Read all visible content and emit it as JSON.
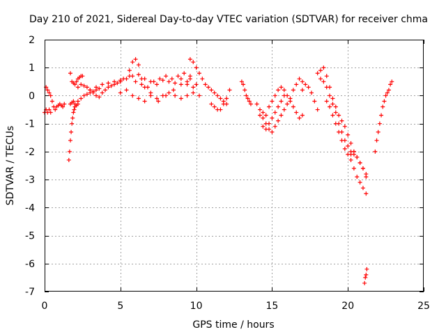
{
  "chart_data": {
    "type": "scatter",
    "title": "Day 210 of 2021, Sidereal Day-to-day VTEC variation (SDTVAR) for receiver chma",
    "xlabel": "GPS time / hours",
    "ylabel": "SDTVAR / TECUs",
    "xlim": [
      0,
      25
    ],
    "ylim": [
      -7,
      2
    ],
    "xticks": [
      0,
      5,
      10,
      15,
      20,
      25
    ],
    "yticks": [
      2,
      1,
      0,
      -1,
      -2,
      -3,
      -4,
      -5,
      -6,
      -7
    ],
    "grid": true,
    "marker": "+",
    "color": "#ff0000",
    "series": [
      {
        "name": "SDTVAR",
        "x": [
          0.0,
          0.1,
          0.2,
          0.3,
          0.4,
          0.1,
          0.2,
          0.3,
          0.4,
          0.5,
          0.6,
          0.7,
          0.8,
          0.9,
          1.0,
          1.1,
          1.2,
          1.3,
          1.6,
          1.65,
          1.7,
          1.75,
          1.8,
          1.85,
          1.9,
          1.95,
          2.0,
          2.1,
          2.2,
          1.7,
          1.8,
          1.9,
          2.0,
          2.1,
          2.2,
          2.3,
          2.4,
          2.5,
          1.7,
          1.8,
          1.9,
          2.0,
          2.2,
          2.4,
          2.6,
          2.8,
          3.0,
          3.2,
          3.4,
          3.6,
          2.2,
          2.4,
          2.6,
          2.8,
          3.0,
          3.2,
          3.4,
          3.6,
          3.8,
          4.0,
          4.2,
          4.4,
          4.6,
          4.8,
          5.0,
          3.0,
          3.4,
          3.8,
          4.2,
          4.6,
          5.0,
          5.4,
          5.8,
          6.2,
          6.6,
          7.0,
          7.4,
          7.8,
          8.2,
          8.6,
          9.0,
          9.4,
          9.8,
          5.0,
          5.4,
          5.8,
          6.2,
          6.6,
          7.0,
          7.4,
          7.8,
          8.2,
          8.6,
          9.0,
          9.4,
          9.8,
          10.2,
          5.2,
          5.6,
          6.0,
          6.4,
          6.8,
          7.2,
          7.6,
          8.0,
          8.4,
          8.8,
          9.2,
          9.6,
          10.0,
          5.6,
          5.8,
          6.0,
          6.2,
          6.4,
          6.6,
          7.0,
          7.5,
          8.0,
          8.5,
          9.0,
          9.4,
          9.6,
          9.6,
          9.8,
          10.0,
          10.2,
          10.4,
          10.6,
          10.8,
          11.0,
          11.2,
          11.4,
          11.6,
          11.8,
          12.0,
          11.0,
          11.2,
          11.4,
          11.6,
          11.8,
          12.0,
          12.2,
          13.0,
          13.1,
          13.2,
          13.3,
          13.4,
          13.5,
          13.6,
          14.0,
          14.2,
          14.4,
          14.6,
          14.8,
          15.0,
          15.2,
          15.4,
          15.6,
          15.8,
          16.0,
          16.2,
          16.4,
          16.6,
          16.8,
          17.0,
          14.2,
          14.4,
          14.6,
          14.8,
          15.0,
          15.2,
          15.4,
          15.6,
          15.8,
          16.0,
          16.2,
          16.4,
          16.6,
          16.8,
          17.0,
          14.4,
          14.6,
          14.8,
          15.0,
          15.2,
          15.4,
          15.6,
          15.8,
          17.0,
          17.2,
          17.4,
          17.6,
          17.8,
          18.0,
          18.0,
          18.2,
          18.4,
          18.6,
          18.8,
          19.0,
          19.2,
          19.4,
          19.6,
          19.8,
          20.0,
          20.2,
          20.4,
          18.2,
          18.4,
          18.6,
          18.8,
          19.0,
          19.2,
          19.4,
          19.6,
          19.8,
          20.0,
          20.2,
          20.4,
          20.6,
          20.8,
          21.0,
          21.2,
          18.6,
          18.8,
          19.0,
          19.2,
          19.4,
          19.6,
          19.8,
          20.0,
          20.2,
          20.4,
          20.6,
          20.8,
          21.0,
          21.2,
          20.2,
          20.4,
          20.6,
          20.8,
          21.0,
          21.2,
          21.1,
          21.15,
          21.2,
          21.25,
          21.8,
          21.9,
          22.0,
          22.1,
          22.2,
          22.3,
          22.4,
          22.5,
          22.6,
          22.7,
          22.8,
          22.9
        ],
        "y": [
          -0.6,
          -0.5,
          -0.6,
          -0.5,
          -0.6,
          0.3,
          0.2,
          0.1,
          0.0,
          -0.2,
          -0.4,
          -0.5,
          -0.4,
          -0.35,
          -0.3,
          -0.35,
          -0.4,
          -0.3,
          -2.3,
          -2.0,
          -1.6,
          -1.3,
          -1.0,
          -0.8,
          -0.6,
          -0.5,
          -0.4,
          -0.35,
          -0.3,
          0.8,
          0.5,
          0.45,
          0.4,
          0.5,
          0.6,
          0.65,
          0.7,
          0.7,
          -0.3,
          -0.25,
          -0.2,
          -0.3,
          -0.2,
          -0.1,
          0.0,
          0.05,
          0.1,
          0.15,
          0.2,
          0.25,
          0.3,
          0.4,
          0.35,
          0.3,
          0.2,
          0.1,
          0.0,
          -0.05,
          0.1,
          0.2,
          0.3,
          0.35,
          0.4,
          0.45,
          0.5,
          0.2,
          0.3,
          0.4,
          0.45,
          0.5,
          0.55,
          0.6,
          0.7,
          0.75,
          0.6,
          0.5,
          0.4,
          0.55,
          0.5,
          0.45,
          0.6,
          0.4,
          0.3,
          0.1,
          0.2,
          0.0,
          -0.1,
          -0.2,
          0.0,
          -0.1,
          0.0,
          0.1,
          0.0,
          -0.1,
          0.0,
          0.1,
          0.0,
          0.6,
          0.7,
          0.5,
          0.4,
          0.3,
          0.5,
          0.6,
          0.7,
          0.6,
          0.7,
          0.8,
          0.7,
          0.4,
          0.9,
          1.2,
          1.3,
          1.1,
          0.6,
          0.3,
          0.1,
          -0.2,
          0.0,
          0.2,
          0.4,
          0.5,
          0.6,
          1.3,
          1.2,
          1.0,
          0.8,
          0.6,
          0.4,
          0.3,
          0.2,
          0.1,
          0.0,
          -0.1,
          -0.2,
          -0.3,
          -0.3,
          -0.4,
          -0.5,
          -0.5,
          -0.3,
          -0.1,
          0.2,
          0.5,
          0.4,
          0.2,
          0.0,
          -0.1,
          -0.2,
          -0.3,
          -0.3,
          -0.5,
          -0.6,
          -0.7,
          -0.4,
          -0.2,
          0.0,
          0.2,
          0.3,
          0.2,
          0.0,
          -0.2,
          -0.4,
          -0.6,
          -0.8,
          -0.7,
          -0.7,
          -0.8,
          -1.0,
          -1.2,
          -1.3,
          -1.1,
          -0.9,
          -0.7,
          -0.5,
          -0.3,
          -0.1,
          0.2,
          0.4,
          0.6,
          0.5,
          -1.1,
          -1.2,
          -1.0,
          -0.8,
          -0.6,
          -0.4,
          -0.2,
          0.0,
          0.2,
          0.4,
          0.3,
          0.1,
          -0.2,
          -0.5,
          0.8,
          0.9,
          1.0,
          0.7,
          0.3,
          -0.1,
          -0.4,
          -0.7,
          -0.9,
          -1.1,
          -1.4,
          -1.7,
          -2.0,
          0.6,
          0.5,
          0.3,
          0.0,
          -0.3,
          -0.6,
          -1.0,
          -1.3,
          -1.6,
          -1.8,
          -2.0,
          -2.1,
          -2.2,
          -2.4,
          -2.6,
          -2.8,
          -0.2,
          -0.4,
          -0.7,
          -1.0,
          -1.3,
          -1.6,
          -1.9,
          -2.1,
          -2.3,
          -2.6,
          -2.9,
          -3.1,
          -3.3,
          -3.5,
          -2.1,
          -2.0,
          -2.2,
          -2.4,
          -2.6,
          -2.9,
          -6.7,
          -6.5,
          -6.4,
          -6.2,
          -2.0,
          -1.6,
          -1.3,
          -1.0,
          -0.7,
          -0.4,
          -0.2,
          0.0,
          0.1,
          0.2,
          0.4,
          0.5
        ]
      }
    ]
  }
}
